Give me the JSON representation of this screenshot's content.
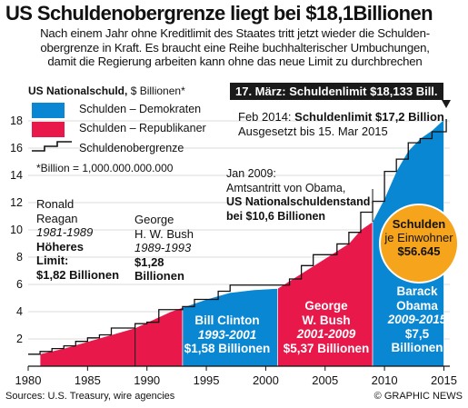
{
  "title": "US Schuldenobergrenze liegt bei $18,1Billionen",
  "subtitle": "Nach einem Jahr ohne Kreditlimit des Staates tritt jetzt wieder die Schulden-\nobergrenze in Kraft. Es braucht eine Reihe buchhalterischer Umbuchungen,\ndamit die Regierung arbeiten kann ohne das neue Limit zu durchbrechen",
  "unit_label_bold": "US Nationalschuld,",
  "unit_label_unit": " $ Billionen*",
  "callout": "17. März: Schuldenlimit $18,133 Bill.",
  "legend": {
    "democrats": "Schulden – Demokraten",
    "republicans": "Schulden – Republikaner",
    "ceiling": "Schuldenobergrenze"
  },
  "billion_note": "*Billion = 1,000.000.000.000",
  "feb_note": {
    "line1_pre": "Feb 2014: ",
    "line1_bold": "Schuldenlimit $17,2 Billion",
    "line2": "Ausgesetzt bis 15. Mar 2015"
  },
  "jan_note": {
    "text": "Jan 2009:\nAmtsantritt von Obama,",
    "bold": "US Nationalschuldenstand\nbei $10,6 Billionen"
  },
  "reagan": {
    "name": "Ronald\nReagan",
    "years": "1981-1989",
    "bold": "Höheres\nLimit:\n$1,82 Billionen"
  },
  "bush_sr": {
    "name": "George\nH. W. Bush",
    "years": "1989-1993",
    "bold": "$1,28\nBillionen"
  },
  "clinton": {
    "name": "Bill Clinton",
    "years": "1993-2001",
    "amount": "$1,58 Billionen"
  },
  "bush_jr": {
    "name": "George\nW. Bush",
    "years": "2001-2009",
    "amount": "$5,37 Billionen"
  },
  "obama": {
    "name": "Barack\nObama",
    "years": "2009-2015",
    "amount": "$7,5\nBillionen"
  },
  "circle": {
    "line1": "Schulden",
    "line2": "je Einwohner",
    "line3": "$56.645"
  },
  "source": "Sources: U.S. Treasury, wire agencies",
  "copyright": "© GRAPHIC NEWS",
  "colors": {
    "democrat": "#0a87d2",
    "republican": "#e8194a",
    "circle": "#f7a41d",
    "ceiling": "#111111"
  },
  "chart_data": {
    "type": "area",
    "ylim": [
      0,
      19
    ],
    "xlim": [
      1980,
      2015.5
    ],
    "yticks": [
      2,
      4,
      6,
      8,
      10,
      12,
      14,
      16,
      18
    ],
    "xticks": [
      1980,
      1985,
      1990,
      1995,
      2000,
      2005,
      2010,
      2015
    ],
    "grid": true,
    "legend_position": "top-left",
    "series": [
      {
        "name": "Schulden – Republikaner",
        "segments": [
          {
            "x": [
              1981,
              1983,
              1985,
              1987,
              1989
            ],
            "y": [
              0.9,
              1.3,
              1.8,
              2.3,
              2.8
            ]
          },
          {
            "x": [
              1989,
              1990,
              1991,
              1992,
              1993
            ],
            "y": [
              2.8,
              3.2,
              3.6,
              4.0,
              4.3
            ]
          },
          {
            "x": [
              2001,
              2003,
              2005,
              2007,
              2008,
              2009
            ],
            "y": [
              5.7,
              6.8,
              7.9,
              9.0,
              10.0,
              10.6
            ]
          }
        ]
      },
      {
        "name": "Schulden – Demokraten",
        "segments": [
          {
            "x": [
              1993,
              1995,
              1997,
              1999,
              2001
            ],
            "y": [
              4.3,
              4.9,
              5.4,
              5.6,
              5.7
            ]
          },
          {
            "x": [
              2009,
              2010,
              2011,
              2012,
              2013,
              2014,
              2015
            ],
            "y": [
              10.6,
              12.3,
              14.3,
              15.8,
              16.7,
              17.3,
              18.1
            ]
          }
        ]
      },
      {
        "name": "Schuldenobergrenze",
        "type": "step",
        "x": [
          1980,
          1981,
          1982,
          1983,
          1984,
          1985,
          1986,
          1987,
          1988,
          1989,
          1990,
          1991,
          1992,
          1993,
          1994,
          1995,
          1996,
          1997,
          2002,
          2003,
          2004,
          2006,
          2007,
          2008,
          2009,
          2010,
          2011,
          2012,
          2013,
          2014,
          2015.2
        ],
        "y": [
          0.88,
          1.08,
          1.29,
          1.49,
          1.82,
          2.08,
          2.3,
          2.8,
          2.8,
          3.12,
          3.23,
          4.15,
          4.15,
          4.37,
          4.9,
          4.9,
          5.5,
          5.95,
          6.4,
          7.38,
          8.18,
          8.97,
          9.82,
          11.3,
          12.1,
          14.29,
          15.19,
          16.39,
          16.7,
          17.2,
          18.133
        ]
      }
    ]
  }
}
